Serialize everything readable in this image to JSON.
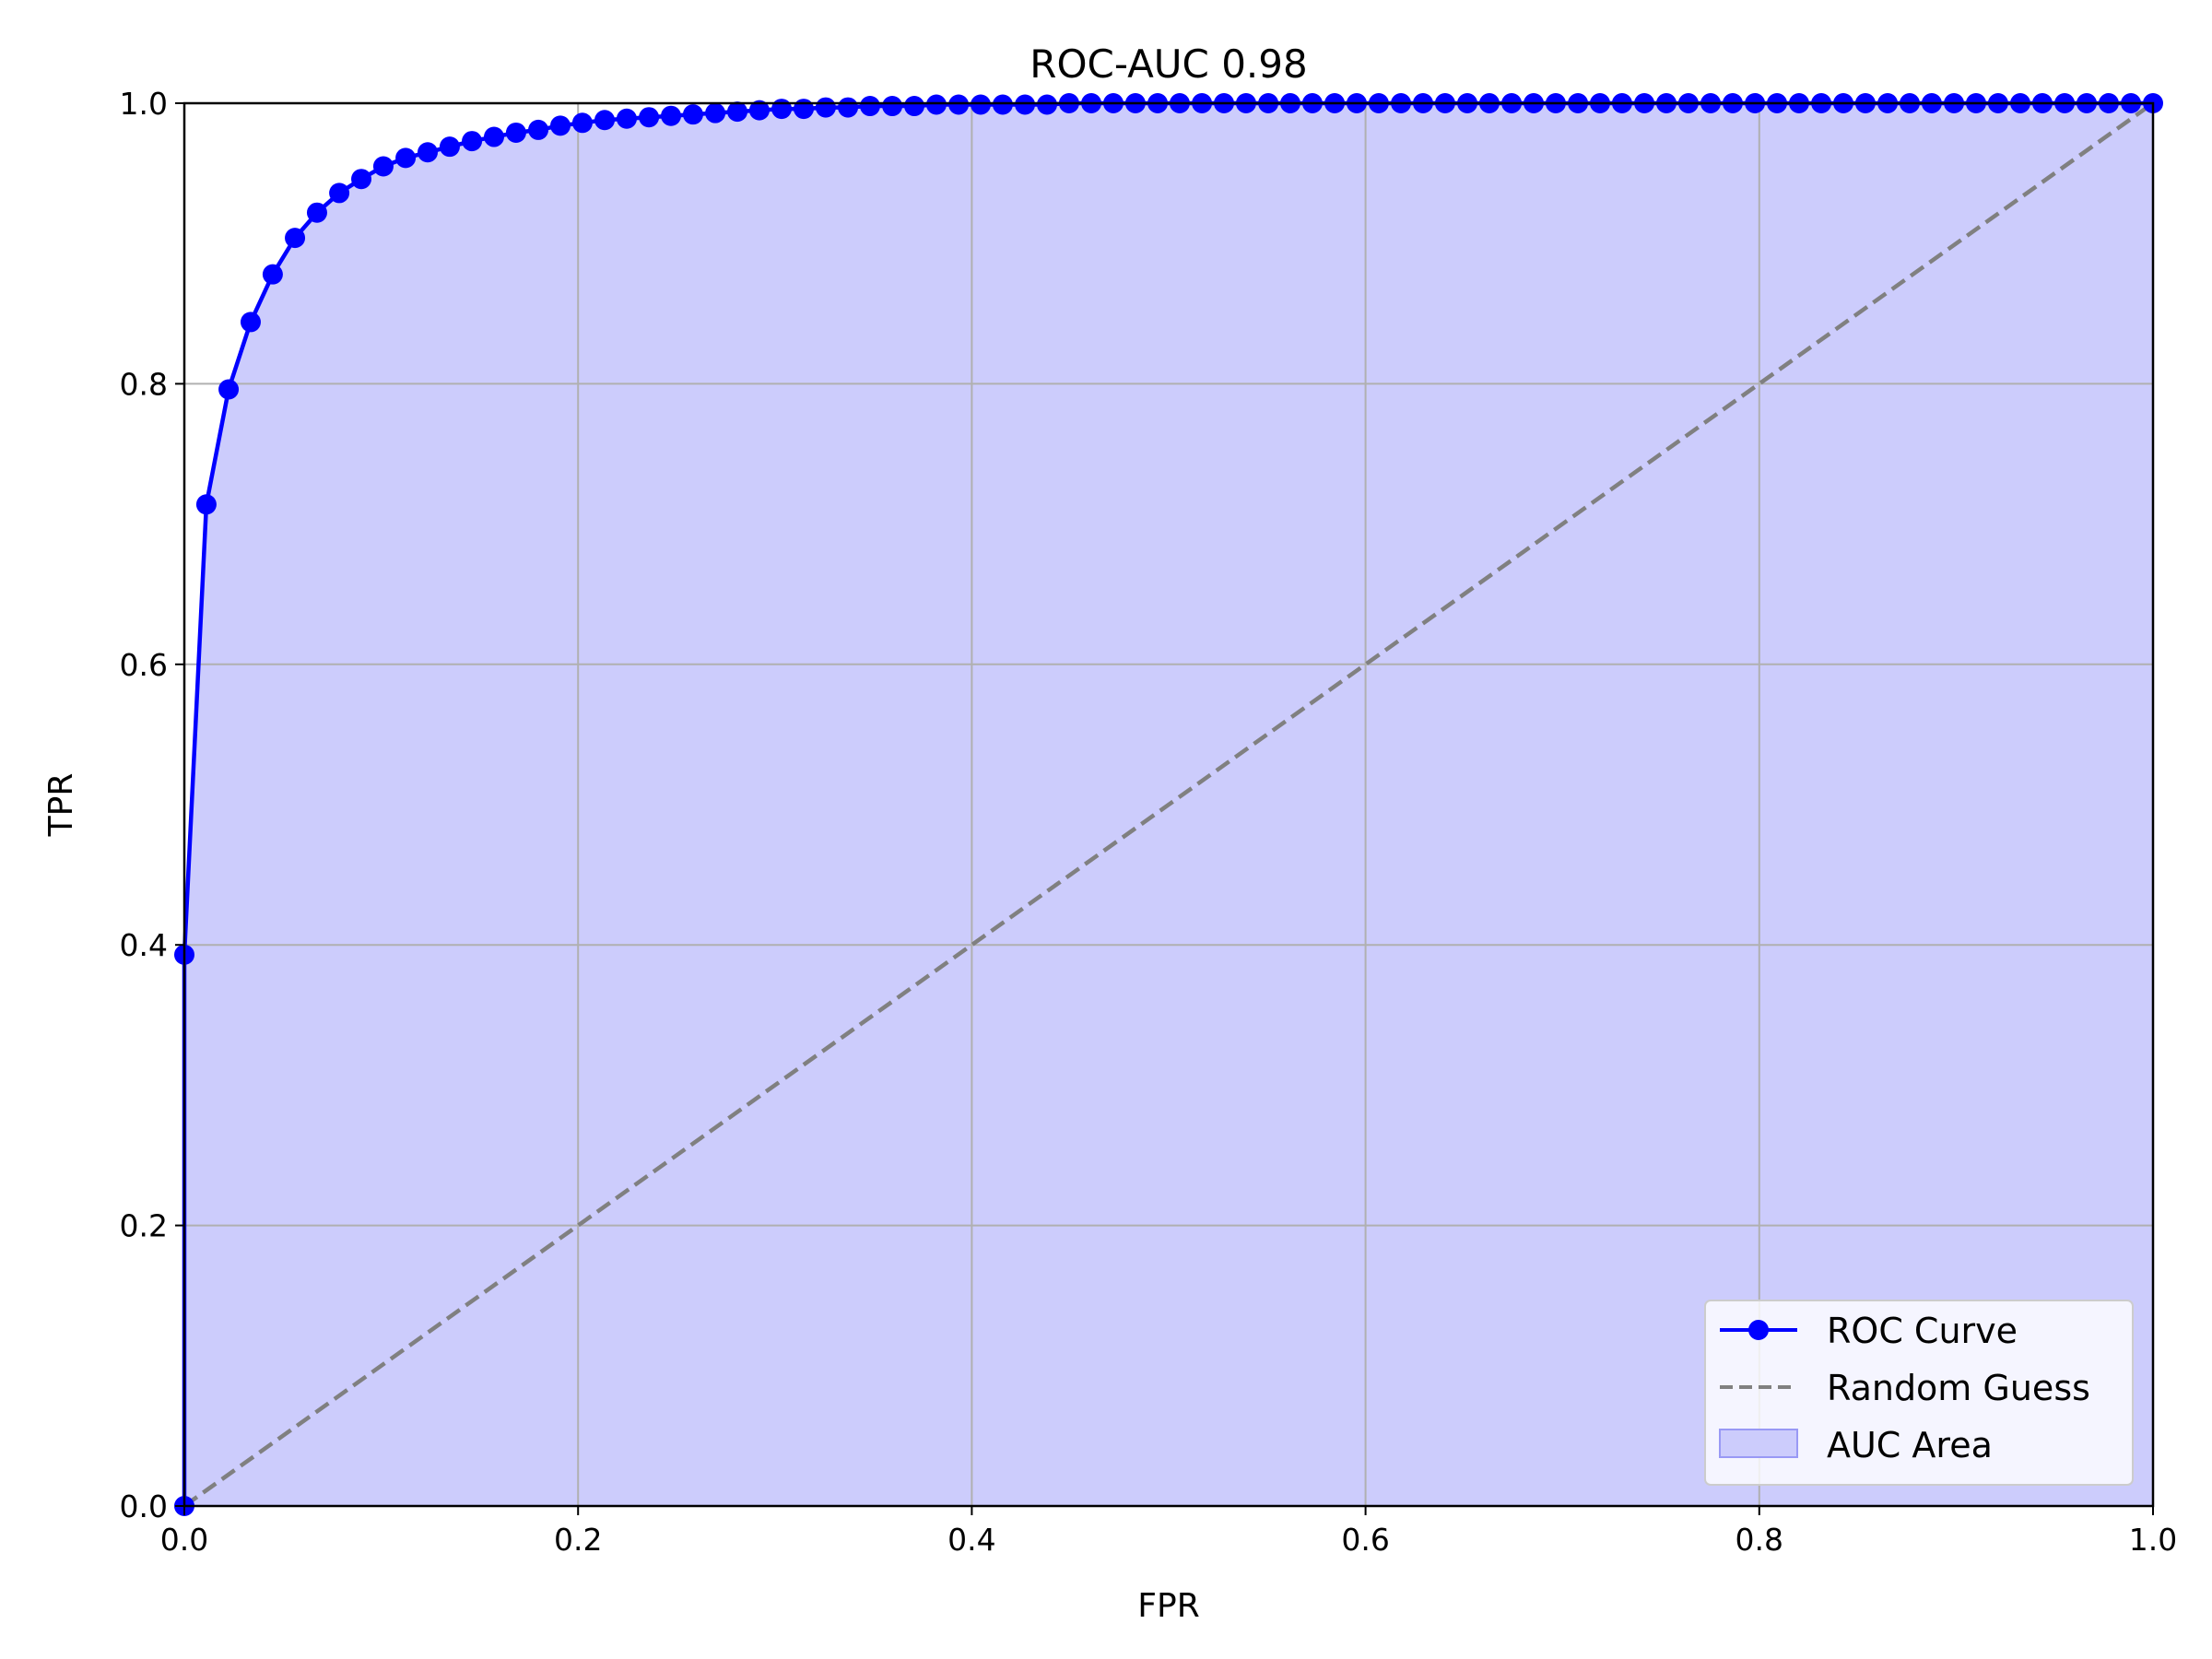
{
  "chart_data": {
    "type": "line",
    "title": "ROC-AUC 0.98",
    "xlabel": "FPR",
    "ylabel": "TPR",
    "xlim": [
      0.0,
      1.0
    ],
    "ylim": [
      0.0,
      1.0
    ],
    "xticks": [
      "0.0",
      "0.2",
      "0.4",
      "0.6",
      "0.8",
      "1.0"
    ],
    "yticks": [
      "0.0",
      "0.2",
      "0.4",
      "0.6",
      "0.8",
      "1.0"
    ],
    "grid": true,
    "legend_position": "lower-right",
    "series": [
      {
        "name": "ROC Curve",
        "kind": "line-with-markers",
        "color": "#0000ff",
        "x": [
          0.0,
          0.0,
          0.0112,
          0.0225,
          0.0337,
          0.0449,
          0.0562,
          0.0674,
          0.0787,
          0.0899,
          0.1011,
          0.1124,
          0.1236,
          0.1348,
          0.1461,
          0.1573,
          0.1685,
          0.1798,
          0.191,
          0.2022,
          0.2135,
          0.2247,
          0.236,
          0.2472,
          0.2584,
          0.2697,
          0.2809,
          0.2921,
          0.3034,
          0.3146,
          0.3258,
          0.3371,
          0.3483,
          0.3596,
          0.3708,
          0.382,
          0.3933,
          0.4045,
          0.4157,
          0.427,
          0.4382,
          0.4494,
          0.4607,
          0.4719,
          0.4831,
          0.4944,
          0.5056,
          0.5169,
          0.5281,
          0.5393,
          0.5506,
          0.5618,
          0.573,
          0.5843,
          0.5955,
          0.6067,
          0.618,
          0.6292,
          0.6404,
          0.6517,
          0.6629,
          0.6742,
          0.6854,
          0.6966,
          0.7079,
          0.7191,
          0.7303,
          0.7416,
          0.7528,
          0.764,
          0.7753,
          0.7865,
          0.7978,
          0.809,
          0.8202,
          0.8315,
          0.8427,
          0.8539,
          0.8652,
          0.8764,
          0.8876,
          0.8989,
          0.9101,
          0.9213,
          0.9326,
          0.9438,
          0.9551,
          0.9663,
          0.9775,
          0.9888,
          1.0
        ],
        "y": [
          0.0,
          0.393,
          0.714,
          0.796,
          0.844,
          0.878,
          0.904,
          0.922,
          0.936,
          0.946,
          0.955,
          0.961,
          0.965,
          0.969,
          0.973,
          0.976,
          0.979,
          0.981,
          0.984,
          0.986,
          0.988,
          0.989,
          0.99,
          0.991,
          0.992,
          0.993,
          0.994,
          0.995,
          0.996,
          0.996,
          0.997,
          0.997,
          0.998,
          0.998,
          0.998,
          0.999,
          0.999,
          0.999,
          0.999,
          0.999,
          0.999,
          1.0,
          1.0,
          1.0,
          1.0,
          1.0,
          1.0,
          1.0,
          1.0,
          1.0,
          1.0,
          1.0,
          1.0,
          1.0,
          1.0,
          1.0,
          1.0,
          1.0,
          1.0,
          1.0,
          1.0,
          1.0,
          1.0,
          1.0,
          1.0,
          1.0,
          1.0,
          1.0,
          1.0,
          1.0,
          1.0,
          1.0,
          1.0,
          1.0,
          1.0,
          1.0,
          1.0,
          1.0,
          1.0,
          1.0,
          1.0,
          1.0,
          1.0,
          1.0,
          1.0,
          1.0,
          1.0,
          1.0,
          1.0,
          1.0,
          1.0
        ]
      },
      {
        "name": "Random Guess",
        "kind": "dashed-line",
        "color": "#808080",
        "x": [
          0.0,
          1.0
        ],
        "y": [
          0.0,
          1.0
        ]
      },
      {
        "name": "AUC Area",
        "kind": "filled-area",
        "color": "#ccccfc",
        "under_series": "ROC Curve"
      }
    ]
  }
}
